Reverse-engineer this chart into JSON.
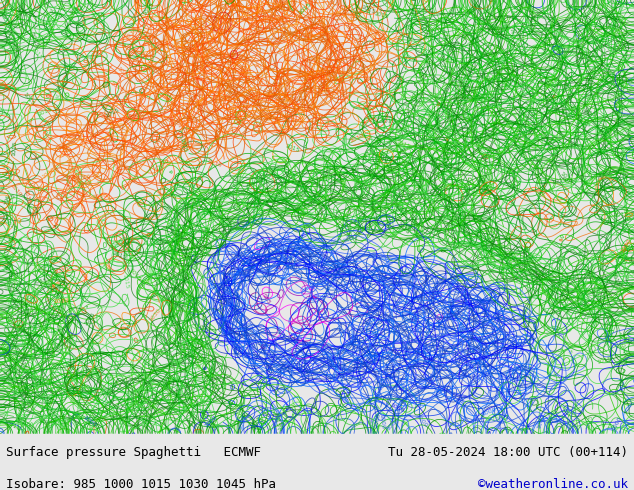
{
  "title_left": "Surface pressure Spaghetti   ECMWF",
  "title_right": "Tu 28-05-2024 18:00 UTC (00+114)",
  "subtitle_left": "Isobare: 985 1000 1015 1030 1045 hPa",
  "subtitle_right": "©weatheronline.co.uk",
  "subtitle_right_color": "#0000cc",
  "land_color": "#c8f0a0",
  "sea_color": "#e8e8e8",
  "border_color": "#888888",
  "coast_color": "#888888",
  "caption_bg": "#e8e8e8",
  "fig_width": 6.34,
  "fig_height": 4.9,
  "dpi": 100,
  "caption_font_size": 9,
  "lon_min": 22,
  "lon_max": 112,
  "lat_min": 3,
  "lat_max": 66,
  "isobar_levels": [
    985,
    1000,
    1015,
    1030,
    1045
  ],
  "isobar_colors": [
    "#cc00cc",
    "#0000ff",
    "#00aa00",
    "#ff6600",
    "#ff0000"
  ],
  "n_members": 51
}
